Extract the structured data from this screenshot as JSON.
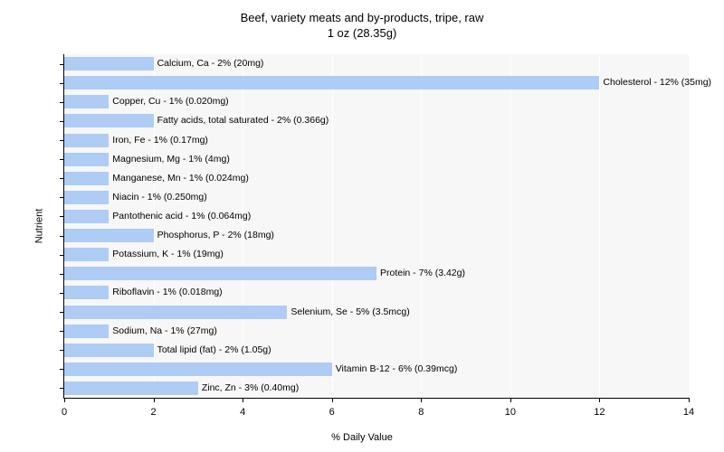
{
  "chart": {
    "type": "bar",
    "title_line1": "Beef, variety meats and by-products, tripe, raw",
    "title_line2": "1 oz (28.35g)",
    "title_fontsize": 13,
    "x_axis_title": "% Daily Value",
    "y_axis_title": "Nutrient",
    "xlim": [
      0,
      14
    ],
    "xtick_step": 2,
    "xticks": [
      0,
      2,
      4,
      6,
      8,
      10,
      12,
      14
    ],
    "background_color": "#ffffff",
    "plot_bg_color": "#f7f7f7",
    "grid_color": "#ffffff",
    "bar_color": "#aeccf4",
    "label_fontsize": 10.5,
    "axis_fontsize": 11,
    "bars": [
      {
        "label": "Calcium, Ca - 2% (20mg)",
        "value": 2
      },
      {
        "label": "Cholesterol - 12% (35mg)",
        "value": 12
      },
      {
        "label": "Copper, Cu - 1% (0.020mg)",
        "value": 1
      },
      {
        "label": "Fatty acids, total saturated - 2% (0.366g)",
        "value": 2
      },
      {
        "label": "Iron, Fe - 1% (0.17mg)",
        "value": 1
      },
      {
        "label": "Magnesium, Mg - 1% (4mg)",
        "value": 1
      },
      {
        "label": "Manganese, Mn - 1% (0.024mg)",
        "value": 1
      },
      {
        "label": "Niacin - 1% (0.250mg)",
        "value": 1
      },
      {
        "label": "Pantothenic acid - 1% (0.064mg)",
        "value": 1
      },
      {
        "label": "Phosphorus, P - 2% (18mg)",
        "value": 2
      },
      {
        "label": "Potassium, K - 1% (19mg)",
        "value": 1
      },
      {
        "label": "Protein - 7% (3.42g)",
        "value": 7
      },
      {
        "label": "Riboflavin - 1% (0.018mg)",
        "value": 1
      },
      {
        "label": "Selenium, Se - 5% (3.5mcg)",
        "value": 5
      },
      {
        "label": "Sodium, Na - 1% (27mg)",
        "value": 1
      },
      {
        "label": "Total lipid (fat) - 2% (1.05g)",
        "value": 2
      },
      {
        "label": "Vitamin B-12 - 6% (0.39mcg)",
        "value": 6
      },
      {
        "label": "Zinc, Zn - 3% (0.40mg)",
        "value": 3
      }
    ]
  }
}
